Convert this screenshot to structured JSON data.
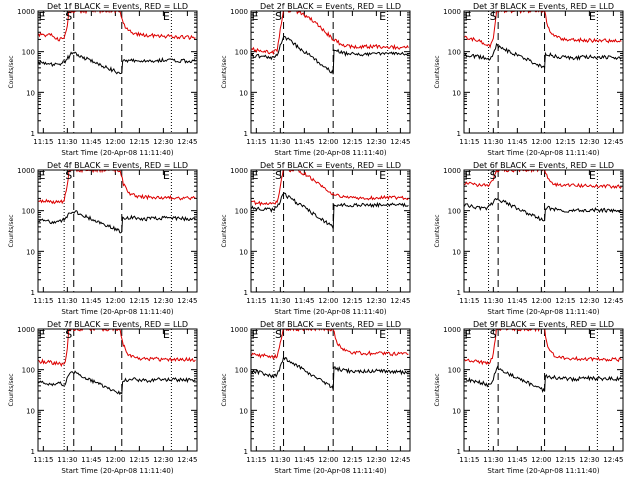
{
  "x_ticks": [
    "11:15",
    "11:30",
    "11:45",
    "12:00",
    "12:15",
    "12:30",
    "12:45"
  ],
  "y_ticks": [
    "1",
    "10",
    "100",
    "1000"
  ],
  "ylabel": "Counts/sec",
  "xlabel": "Start Time (20-Apr-08 11:11:40)",
  "markers": {
    "S": "S",
    "E": "E"
  },
  "colors": {
    "events": "#000000",
    "lld": "#dd0000"
  },
  "chart_data": [
    {
      "type": "line",
      "title": "Det 1f BLACK = Events, RED = LLD",
      "yscale": "log",
      "ylim": [
        1,
        1000
      ],
      "xlim": [
        "11:11:40",
        "12:51:00"
      ],
      "dotted_x": [
        "11:28",
        "12:35"
      ],
      "dashed_x": [
        "11:34",
        "12:04"
      ],
      "series": [
        {
          "name": "Events",
          "x": [
            "11:12",
            "11:20",
            "11:25",
            "11:28",
            "11:31",
            "11:33",
            "12:04",
            "12:04.5",
            "12:10",
            "12:20",
            "12:30",
            "12:40",
            "12:50"
          ],
          "y": [
            55,
            48,
            50,
            55,
            75,
            95,
            28,
            60,
            62,
            58,
            62,
            60,
            58
          ]
        },
        {
          "name": "LLD",
          "x": [
            "11:12",
            "11:20",
            "11:25",
            "11:28",
            "11:30",
            "11:31",
            "12:03",
            "12:05",
            "12:08",
            "12:15",
            "12:30",
            "12:40",
            "12:50"
          ],
          "y": [
            270,
            250,
            200,
            210,
            400,
            1000,
            1000,
            500,
            320,
            260,
            240,
            230,
            220
          ]
        }
      ]
    },
    {
      "type": "line",
      "title": "Det 2f BLACK = Events, RED = LLD",
      "yscale": "log",
      "ylim": [
        1,
        1000
      ],
      "xlim": [
        "11:11:40",
        "12:51:00"
      ],
      "dotted_x": [
        "11:26",
        "12:37"
      ],
      "dashed_x": [
        "11:32",
        "12:03"
      ],
      "series": [
        {
          "name": "Events",
          "x": [
            "11:12",
            "11:20",
            "11:25",
            "11:28",
            "11:30",
            "11:32",
            "12:03",
            "12:03.5",
            "12:10",
            "12:20",
            "12:30",
            "12:40",
            "12:50"
          ],
          "y": [
            80,
            75,
            72,
            80,
            150,
            240,
            30,
            110,
            90,
            85,
            90,
            88,
            85
          ]
        },
        {
          "name": "LLD",
          "x": [
            "11:12",
            "11:20",
            "11:25",
            "11:28",
            "11:30",
            "11:32",
            "11:40",
            "11:48",
            "11:55",
            "12:03",
            "12:10",
            "12:20",
            "12:30",
            "12:40",
            "12:50"
          ],
          "y": [
            115,
            100,
            95,
            110,
            350,
            1000,
            1000,
            700,
            400,
            200,
            140,
            130,
            135,
            130,
            125
          ]
        }
      ]
    },
    {
      "type": "line",
      "title": "Det 3f BLACK = Events, RED = LLD",
      "yscale": "log",
      "ylim": [
        1,
        1000
      ],
      "xlim": [
        "11:11:40",
        "12:51:00"
      ],
      "dotted_x": [
        "11:27",
        "12:35"
      ],
      "dashed_x": [
        "11:33",
        "12:02"
      ],
      "series": [
        {
          "name": "Events",
          "x": [
            "11:12",
            "11:20",
            "11:25",
            "11:28",
            "11:30",
            "11:32",
            "12:02",
            "12:02.5",
            "12:10",
            "12:20",
            "12:30",
            "12:40",
            "12:50"
          ],
          "y": [
            85,
            75,
            70,
            60,
            90,
            140,
            40,
            90,
            75,
            70,
            75,
            72,
            70
          ]
        },
        {
          "name": "LLD",
          "x": [
            "11:12",
            "11:20",
            "11:25",
            "11:28",
            "11:30",
            "11:32",
            "12:02",
            "12:04",
            "12:08",
            "12:15",
            "12:30",
            "12:40",
            "12:50"
          ],
          "y": [
            220,
            190,
            160,
            130,
            200,
            1000,
            1000,
            400,
            240,
            200,
            190,
            185,
            180
          ]
        }
      ]
    },
    {
      "type": "line",
      "title": "Det 4f BLACK = Events, RED = LLD",
      "yscale": "log",
      "ylim": [
        1,
        1000
      ],
      "xlim": [
        "11:11:40",
        "12:51:00"
      ],
      "dotted_x": [
        "11:28",
        "12:35"
      ],
      "dashed_x": [
        "11:34",
        "12:04"
      ],
      "series": [
        {
          "name": "Events",
          "x": [
            "11:12",
            "11:20",
            "11:25",
            "11:28",
            "11:31",
            "11:33",
            "12:04",
            "12:04.5",
            "12:10",
            "12:20",
            "12:30",
            "12:40",
            "12:50"
          ],
          "y": [
            60,
            52,
            55,
            60,
            80,
            100,
            30,
            65,
            68,
            62,
            66,
            64,
            62
          ]
        },
        {
          "name": "LLD",
          "x": [
            "11:12",
            "11:20",
            "11:25",
            "11:28",
            "11:30",
            "11:31",
            "12:03",
            "12:05",
            "12:08",
            "12:15",
            "12:30",
            "12:40",
            "12:50"
          ],
          "y": [
            180,
            170,
            160,
            175,
            400,
            1000,
            1000,
            450,
            280,
            220,
            210,
            205,
            200
          ]
        }
      ]
    },
    {
      "type": "line",
      "title": "Det 5f BLACK = Events, RED = LLD",
      "yscale": "log",
      "ylim": [
        1,
        1000
      ],
      "xlim": [
        "11:11:40",
        "12:51:00"
      ],
      "dotted_x": [
        "11:26",
        "12:37"
      ],
      "dashed_x": [
        "11:32",
        "12:03"
      ],
      "series": [
        {
          "name": "Events",
          "x": [
            "11:12",
            "11:20",
            "11:25",
            "11:28",
            "11:30",
            "11:32",
            "12:03",
            "12:03.5",
            "12:10",
            "12:20",
            "12:30",
            "12:40",
            "12:50"
          ],
          "y": [
            120,
            110,
            105,
            120,
            180,
            260,
            40,
            130,
            140,
            135,
            140,
            138,
            135
          ]
        },
        {
          "name": "LLD",
          "x": [
            "11:12",
            "11:20",
            "11:25",
            "11:28",
            "11:30",
            "11:32",
            "11:40",
            "11:48",
            "11:55",
            "12:03",
            "12:10",
            "12:20",
            "12:30",
            "12:40",
            "12:50"
          ],
          "y": [
            160,
            150,
            140,
            160,
            400,
            1000,
            1000,
            700,
            420,
            260,
            210,
            200,
            205,
            210,
            205
          ]
        }
      ]
    },
    {
      "type": "line",
      "title": "Det 6f BLACK = Events, RED = LLD",
      "yscale": "log",
      "ylim": [
        1,
        1000
      ],
      "xlim": [
        "11:11:40",
        "12:51:00"
      ],
      "dotted_x": [
        "11:27",
        "12:35"
      ],
      "dashed_x": [
        "11:33",
        "12:02"
      ],
      "series": [
        {
          "name": "Events",
          "x": [
            "11:12",
            "11:20",
            "11:25",
            "11:28",
            "11:30",
            "11:32",
            "12:02",
            "12:02.5",
            "12:10",
            "12:20",
            "12:30",
            "12:40",
            "12:50"
          ],
          "y": [
            140,
            120,
            115,
            130,
            160,
            200,
            55,
            120,
            105,
            100,
            105,
            102,
            100
          ]
        },
        {
          "name": "LLD",
          "x": [
            "11:12",
            "11:20",
            "11:25",
            "11:28",
            "11:30",
            "11:32",
            "12:02",
            "12:04",
            "12:08",
            "12:15",
            "12:30",
            "12:40",
            "12:50"
          ],
          "y": [
            480,
            430,
            420,
            450,
            600,
            1000,
            1000,
            600,
            450,
            420,
            410,
            400,
            390
          ]
        }
      ]
    },
    {
      "type": "line",
      "title": "Det 7f BLACK = Events, RED = LLD",
      "yscale": "log",
      "ylim": [
        1,
        1000
      ],
      "xlim": [
        "11:11:40",
        "12:51:00"
      ],
      "dotted_x": [
        "11:28",
        "12:35"
      ],
      "dashed_x": [
        "11:34",
        "12:04"
      ],
      "series": [
        {
          "name": "Events",
          "x": [
            "11:12",
            "11:20",
            "11:25",
            "11:28",
            "11:31",
            "11:33",
            "12:04",
            "12:04.5",
            "12:10",
            "12:20",
            "12:30",
            "12:40",
            "12:50"
          ],
          "y": [
            50,
            45,
            48,
            42,
            70,
            90,
            25,
            55,
            58,
            54,
            58,
            56,
            54
          ]
        },
        {
          "name": "LLD",
          "x": [
            "11:12",
            "11:20",
            "11:25",
            "11:28",
            "11:30",
            "11:31",
            "12:03",
            "12:05",
            "12:08",
            "12:15",
            "12:30",
            "12:40",
            "12:50"
          ],
          "y": [
            160,
            150,
            140,
            130,
            300,
            1000,
            1000,
            400,
            230,
            190,
            180,
            178,
            175
          ]
        }
      ]
    },
    {
      "type": "line",
      "title": "Det 8f BLACK = Events, RED = LLD",
      "yscale": "log",
      "ylim": [
        1,
        1000
      ],
      "xlim": [
        "11:11:40",
        "12:51:00"
      ],
      "dotted_x": [
        "11:26",
        "12:37"
      ],
      "dashed_x": [
        "11:32",
        "12:03"
      ],
      "series": [
        {
          "name": "Events",
          "x": [
            "11:12",
            "11:20",
            "11:25",
            "11:28",
            "11:30",
            "11:32",
            "12:03",
            "12:03.5",
            "12:10",
            "12:20",
            "12:30",
            "12:40",
            "12:50"
          ],
          "y": [
            95,
            80,
            70,
            75,
            120,
            200,
            35,
            110,
            95,
            90,
            92,
            88,
            85
          ]
        },
        {
          "name": "LLD",
          "x": [
            "11:12",
            "11:20",
            "11:25",
            "11:28",
            "11:30",
            "11:32",
            "12:03",
            "12:05",
            "12:08",
            "12:15",
            "12:30",
            "12:40",
            "12:50"
          ],
          "y": [
            230,
            220,
            200,
            210,
            500,
            1000,
            1000,
            500,
            320,
            260,
            250,
            245,
            240
          ]
        }
      ]
    },
    {
      "type": "line",
      "title": "Det 9f BLACK = Events, RED = LLD",
      "yscale": "log",
      "ylim": [
        1,
        1000
      ],
      "xlim": [
        "11:11:40",
        "12:51:00"
      ],
      "dotted_x": [
        "11:27",
        "12:35"
      ],
      "dashed_x": [
        "11:33",
        "12:02"
      ],
      "series": [
        {
          "name": "Events",
          "x": [
            "11:12",
            "11:20",
            "11:25",
            "11:28",
            "11:30",
            "11:32",
            "12:02",
            "12:02.5",
            "12:10",
            "12:20",
            "12:30",
            "12:40",
            "12:50"
          ],
          "y": [
            60,
            50,
            45,
            40,
            60,
            110,
            30,
            70,
            62,
            58,
            62,
            60,
            58
          ]
        },
        {
          "name": "LLD",
          "x": [
            "11:12",
            "11:20",
            "11:25",
            "11:28",
            "11:30",
            "11:32",
            "12:02",
            "12:04",
            "12:08",
            "12:15",
            "12:30",
            "12:40",
            "12:50"
          ],
          "y": [
            180,
            160,
            150,
            140,
            250,
            1000,
            1000,
            350,
            220,
            190,
            180,
            178,
            175
          ]
        }
      ]
    }
  ]
}
